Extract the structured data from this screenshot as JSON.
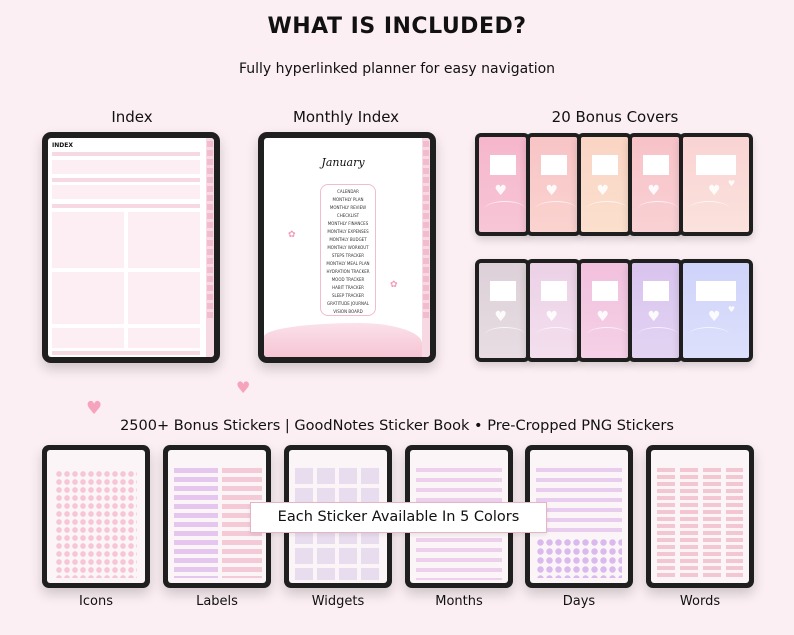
{
  "header": {
    "title": "WHAT IS INCLUDED?",
    "subtitle": "Fully hyperlinked planner for easy navigation"
  },
  "sections": {
    "index_label": "Index",
    "monthly_index_label": "Monthly Index",
    "covers_label": "20 Bonus Covers"
  },
  "index_page": {
    "title": "INDEX"
  },
  "monthly_page": {
    "title": "January",
    "items": [
      "CALENDAR",
      "MONTHLY PLAN",
      "MONTHLY REVIEW",
      "CHECKLIST",
      "MONTHLY FINANCES",
      "MONTHLY EXPENSES",
      "MONTHLY BUDGET",
      "MONTHLY WORKOUT",
      "STEPS TRACKER",
      "MONTHLY MEAL PLAN",
      "HYDRATION TRACKER",
      "MOOD TRACKER",
      "HABIT TRACKER",
      "SLEEP TRACKER",
      "GRATITUDE JOURNAL",
      "VISION BOARD"
    ]
  },
  "covers": {
    "row1_colors": [
      "#f6b6cc",
      "#f8c4c6",
      "#fad4c4",
      "#f7c2c8",
      "#f9d3d3"
    ],
    "row2_colors": [
      "#ddd0d8",
      "#ecd1e6",
      "#f1c0dd",
      "#d8c3ee",
      "#cfd3fa"
    ]
  },
  "stickers": {
    "title": "2500+ Bonus Stickers | GoodNotes Sticker Book • Pre-Cropped PNG Stickers",
    "banner": "Each Sticker Available In 5 Colors",
    "captions": [
      "Icons",
      "Labels",
      "Widgets",
      "Months",
      "Days",
      "Words"
    ]
  },
  "colors": {
    "background": "#fbeff3",
    "accent_pink": "#f1bccd",
    "heart": "#f6a3bd"
  }
}
